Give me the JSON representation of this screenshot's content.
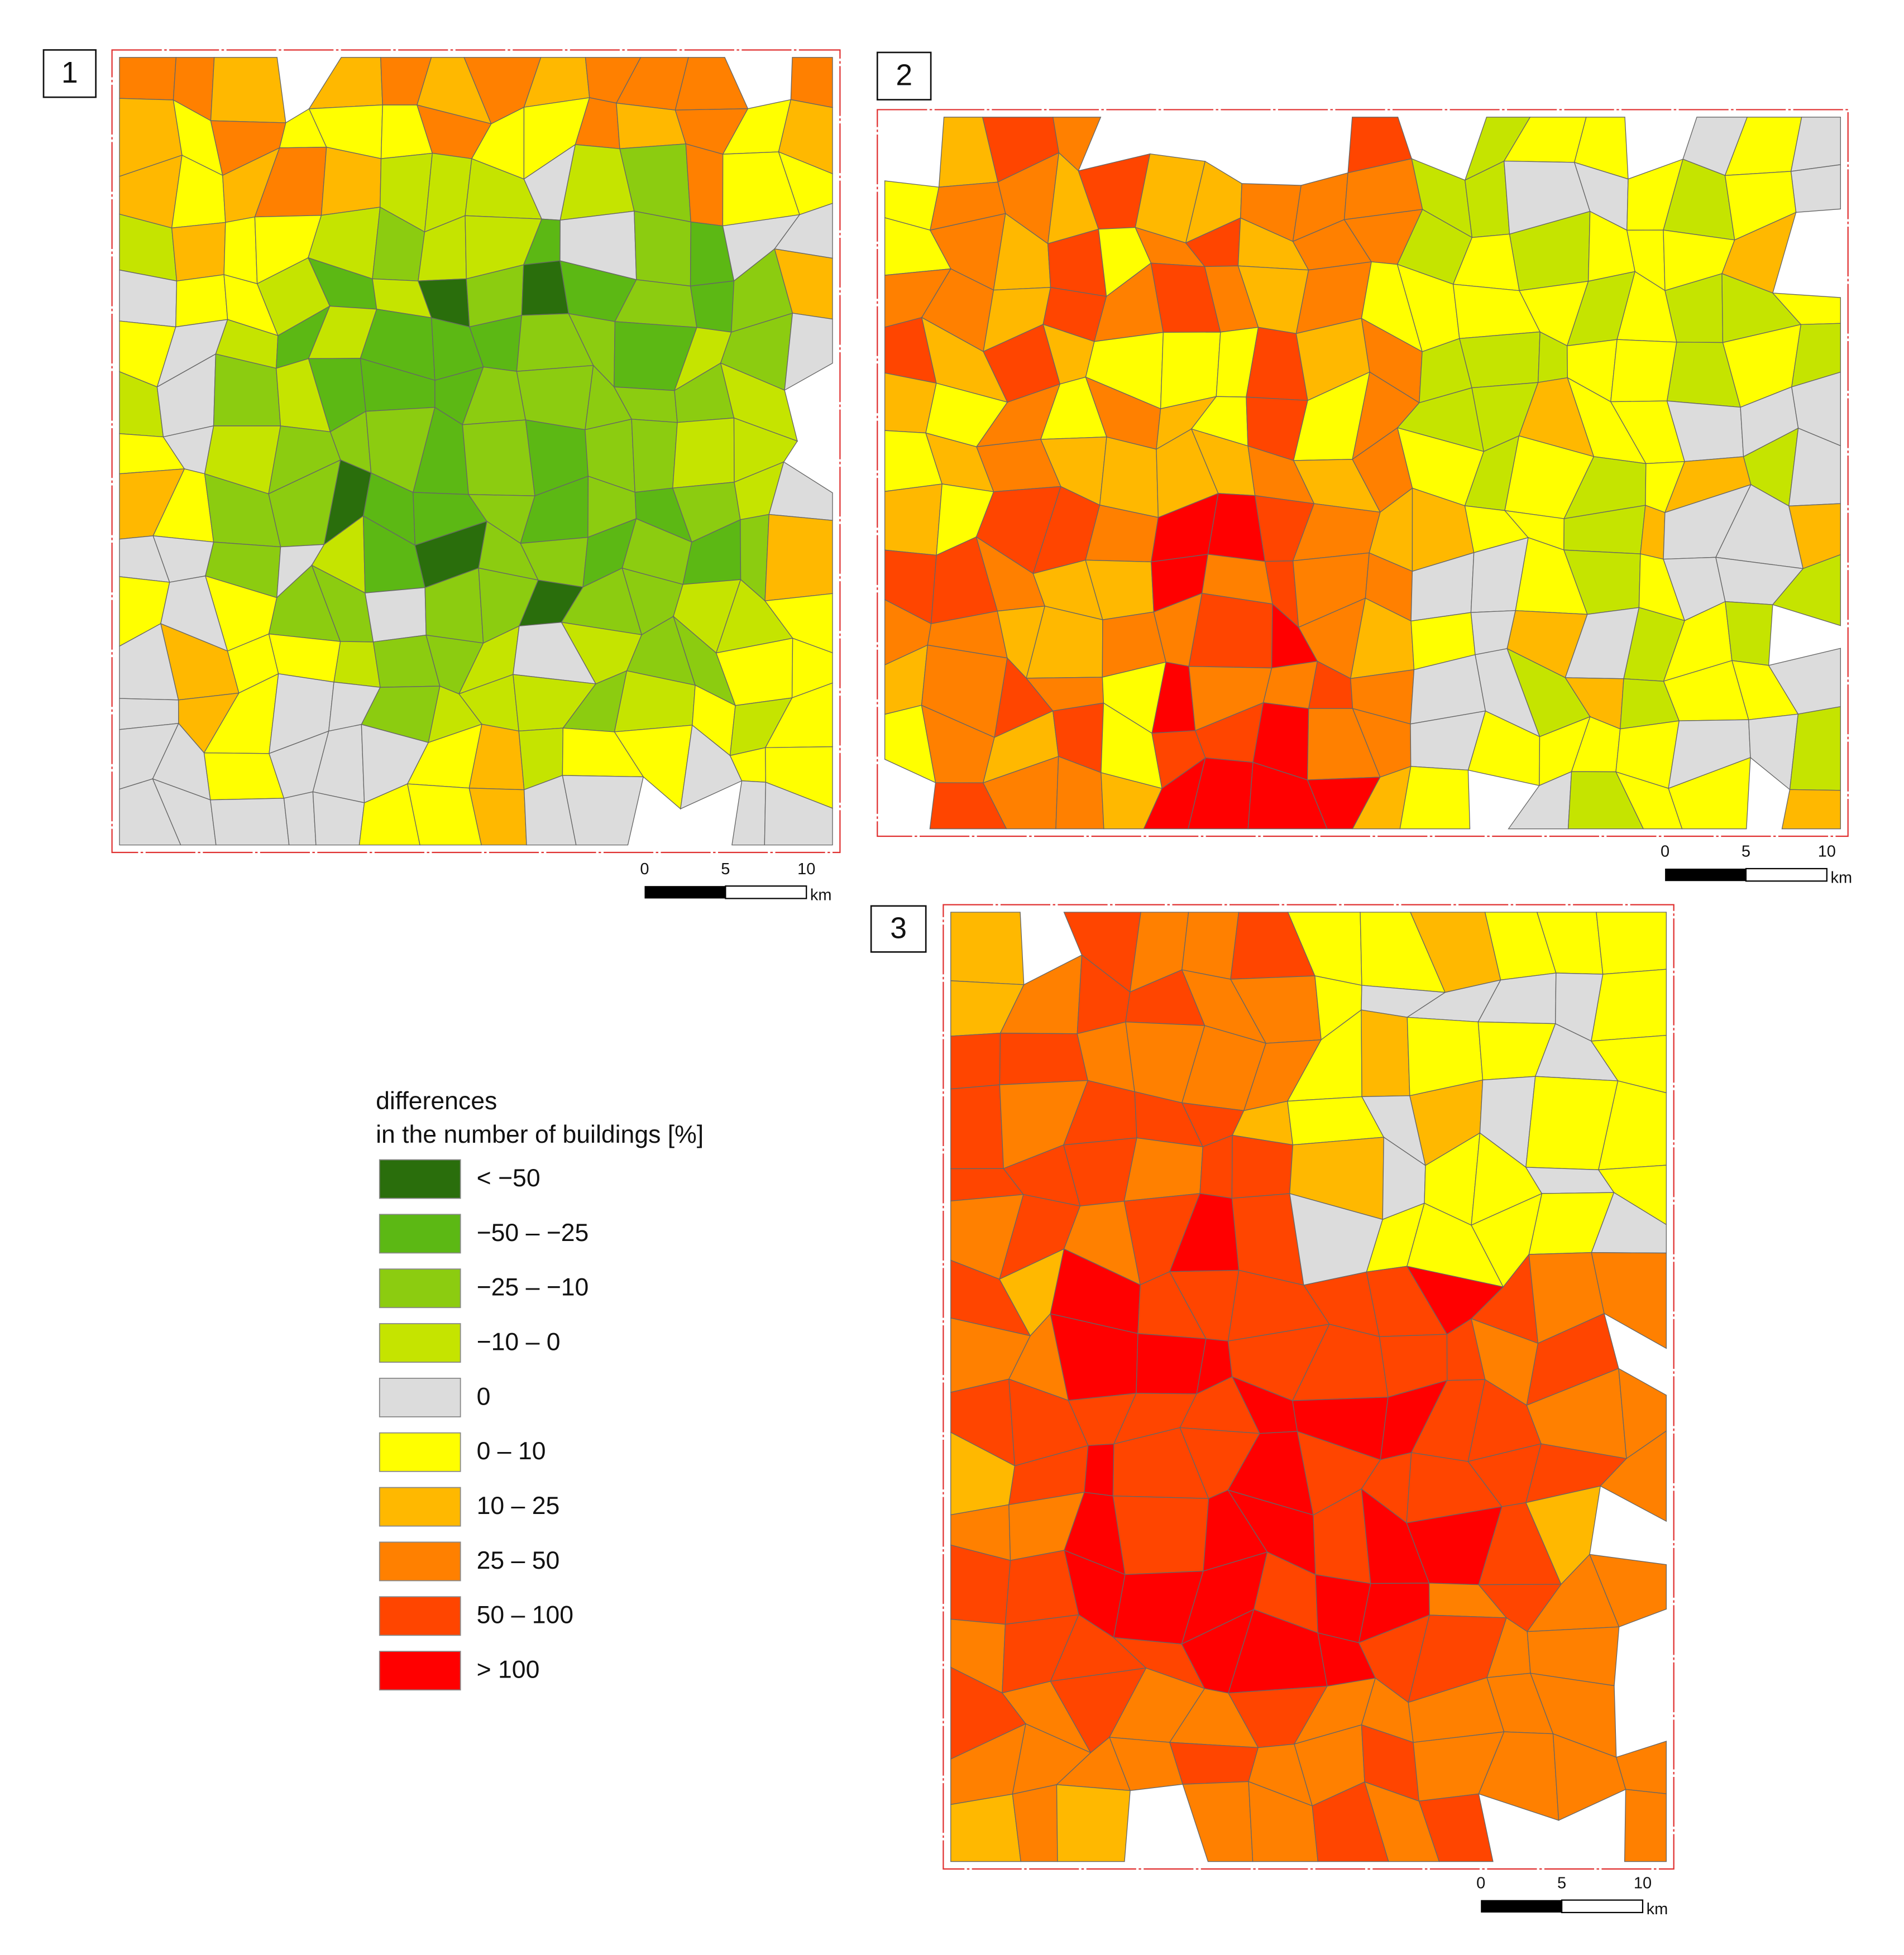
{
  "panels": [
    {
      "label": "1",
      "scale_bar": {
        "ticks": [
          0,
          5,
          10
        ],
        "unit": "km"
      }
    },
    {
      "label": "2",
      "scale_bar": {
        "ticks": [
          0,
          5,
          10
        ],
        "unit": "km"
      }
    },
    {
      "label": "3",
      "scale_bar": {
        "ticks": [
          0,
          5,
          10
        ],
        "unit": "km"
      }
    }
  ],
  "legend": {
    "title": [
      "differences",
      "in the number of buildings [%]"
    ],
    "items": [
      {
        "label": "< −50",
        "color": "#2a6e0c"
      },
      {
        "label": "−50 – −25",
        "color": "#5cb814"
      },
      {
        "label": "−25 – −10",
        "color": "#8ccc10"
      },
      {
        "label": "−10 – 0",
        "color": "#c5e400"
      },
      {
        "label": "0",
        "color": "#dcdcdc"
      },
      {
        "label": "0 – 10",
        "color": "#ffff00"
      },
      {
        "label": "10 – 25",
        "color": "#ffb800"
      },
      {
        "label": "25 – 50",
        "color": "#ff8000"
      },
      {
        "label": "50 – 100",
        "color": "#ff4500"
      },
      {
        "label": "> 100",
        "color": "#ff0000"
      }
    ]
  }
}
